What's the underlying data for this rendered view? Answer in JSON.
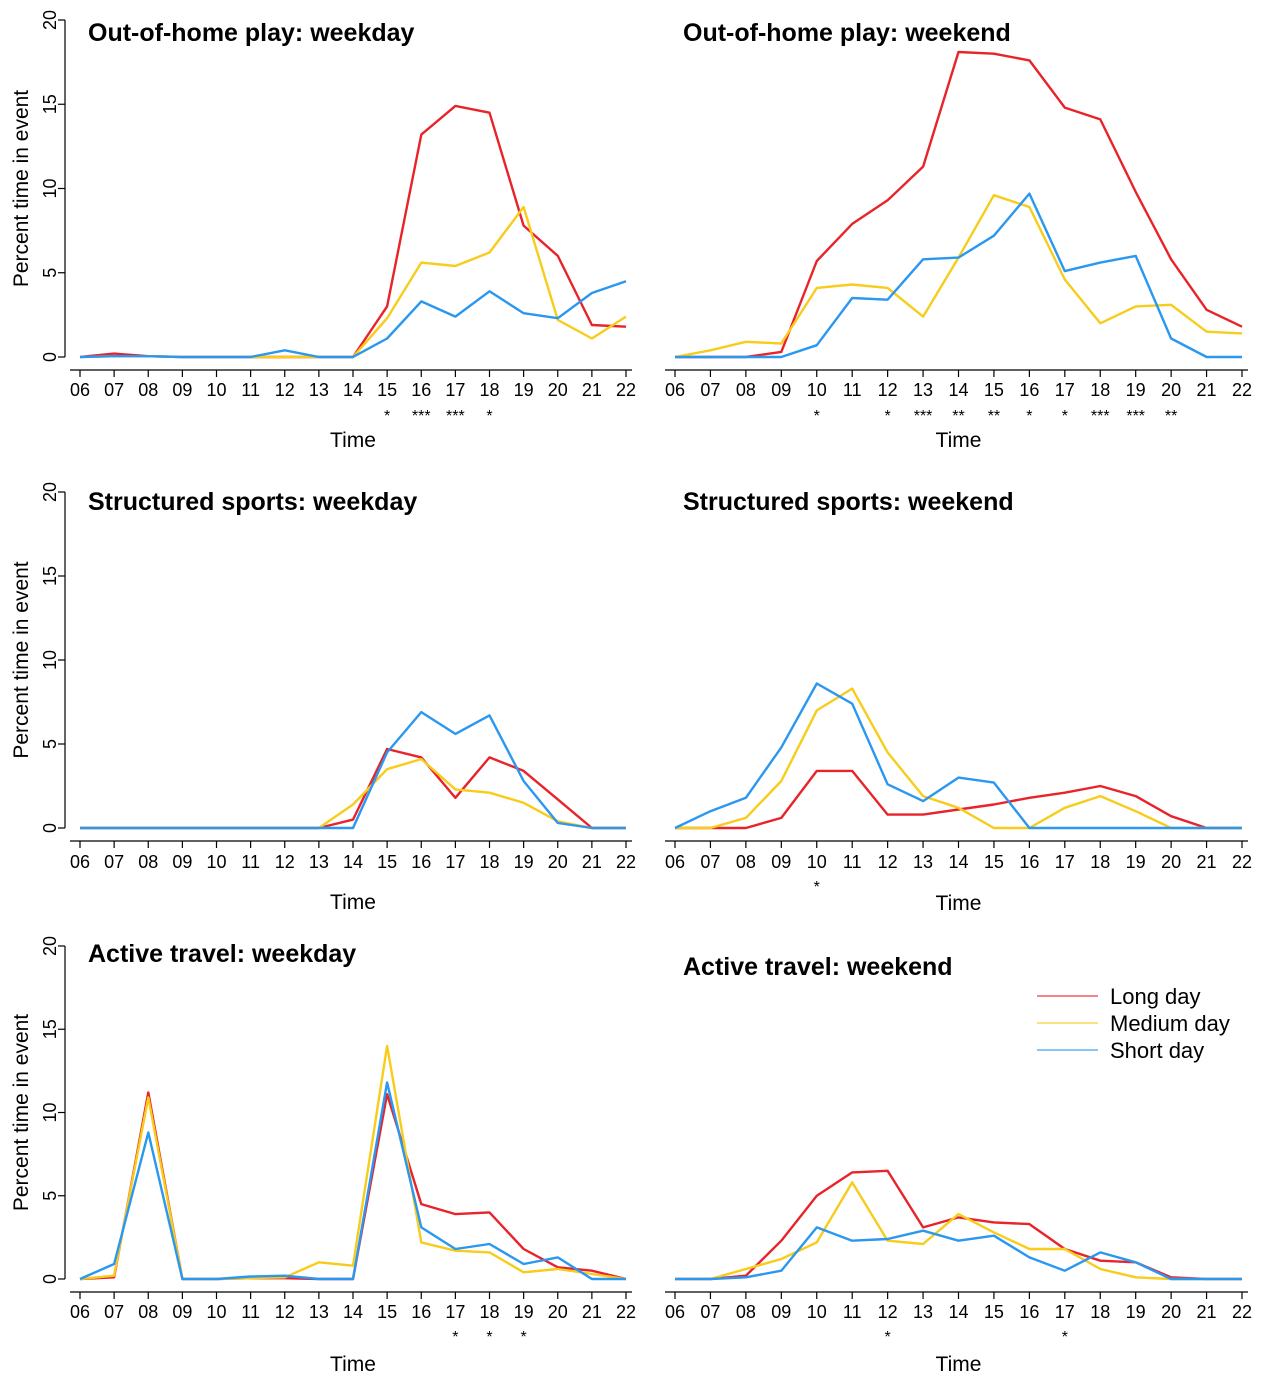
{
  "legend": [
    {
      "name": "Long day",
      "color": "#e8232a"
    },
    {
      "name": "Medium day",
      "color": "#f7cc1b"
    },
    {
      "name": "Short day",
      "color": "#2a97f0"
    }
  ],
  "chart_data": [
    {
      "type": "line",
      "title": "Out-of-home play: weekday",
      "xlabel": "Time",
      "ylabel": "Percent time in event",
      "ylim": [
        0,
        20
      ],
      "yticks": [
        0,
        5,
        10,
        15,
        20
      ],
      "categories": [
        "06",
        "07",
        "08",
        "09",
        "10",
        "11",
        "12",
        "13",
        "14",
        "15",
        "16",
        "17",
        "18",
        "19",
        "20",
        "21",
        "22"
      ],
      "significance": [
        "",
        "",
        "",
        "",
        "",
        "",
        "",
        "",
        "",
        "*",
        "***",
        "***",
        "*",
        "",
        "",
        "",
        ""
      ],
      "series": [
        {
          "name": "Long day",
          "color": "#e8232a",
          "values": [
            0,
            0.2,
            0.05,
            0,
            0,
            0,
            0,
            0,
            0,
            3.0,
            13.2,
            14.9,
            14.5,
            7.8,
            6.0,
            1.9,
            1.8
          ]
        },
        {
          "name": "Medium day",
          "color": "#f7cc1b",
          "values": [
            0,
            0.05,
            0.05,
            0,
            0,
            0,
            0,
            0,
            0,
            2.3,
            5.6,
            5.4,
            6.2,
            8.9,
            2.2,
            1.1,
            2.4
          ]
        },
        {
          "name": "Short day",
          "color": "#2a97f0",
          "values": [
            0,
            0.05,
            0.05,
            0,
            0,
            0,
            0.4,
            0,
            0,
            1.1,
            3.3,
            2.4,
            3.9,
            2.6,
            2.3,
            3.8,
            4.5
          ]
        }
      ]
    },
    {
      "type": "line",
      "title": "Out-of-home play: weekend",
      "xlabel": "Time",
      "ylabel": "",
      "ylim": [
        0,
        20
      ],
      "categories": [
        "06",
        "07",
        "08",
        "09",
        "10",
        "11",
        "12",
        "13",
        "14",
        "15",
        "16",
        "17",
        "18",
        "19",
        "20",
        "21",
        "22"
      ],
      "significance": [
        "",
        "",
        "",
        "",
        "*",
        "",
        "*",
        "***",
        "**",
        "**",
        "*",
        "*",
        "***",
        "***",
        "**",
        "",
        ""
      ],
      "series": [
        {
          "name": "Long day",
          "color": "#e8232a",
          "values": [
            0,
            0,
            0,
            0.3,
            5.7,
            7.9,
            9.3,
            11.3,
            18.1,
            18.0,
            17.6,
            14.8,
            14.1,
            9.8,
            5.8,
            2.8,
            1.8
          ]
        },
        {
          "name": "Medium day",
          "color": "#f7cc1b",
          "values": [
            0,
            0.4,
            0.9,
            0.8,
            4.1,
            4.3,
            4.1,
            2.4,
            5.9,
            9.6,
            8.9,
            4.6,
            2.0,
            3.0,
            3.1,
            1.5,
            1.4
          ]
        },
        {
          "name": "Short day",
          "color": "#2a97f0",
          "values": [
            0,
            0,
            0,
            0,
            0.7,
            3.5,
            3.4,
            5.8,
            5.9,
            7.2,
            9.7,
            5.1,
            5.6,
            6.0,
            1.1,
            0,
            0
          ]
        }
      ]
    },
    {
      "type": "line",
      "title": "Structured sports: weekday",
      "xlabel": "Time",
      "ylabel": "Percent time in event",
      "ylim": [
        0,
        20
      ],
      "yticks": [
        0,
        5,
        10,
        15,
        20
      ],
      "categories": [
        "06",
        "07",
        "08",
        "09",
        "10",
        "11",
        "12",
        "13",
        "14",
        "15",
        "16",
        "17",
        "18",
        "19",
        "20",
        "21",
        "22"
      ],
      "significance": [
        "",
        "",
        "",
        "",
        "",
        "",
        "",
        "",
        "",
        "",
        "",
        "",
        "",
        "",
        "",
        "",
        ""
      ],
      "series": [
        {
          "name": "Long day",
          "color": "#e8232a",
          "values": [
            0,
            0,
            0,
            0,
            0,
            0,
            0,
            0,
            0.5,
            4.7,
            4.2,
            1.8,
            4.2,
            3.4,
            1.7,
            0,
            0
          ]
        },
        {
          "name": "Medium day",
          "color": "#f7cc1b",
          "values": [
            0,
            0,
            0,
            0,
            0,
            0,
            0,
            0,
            1.4,
            3.5,
            4.1,
            2.3,
            2.1,
            1.5,
            0.4,
            0,
            0
          ]
        },
        {
          "name": "Short day",
          "color": "#2a97f0",
          "values": [
            0,
            0,
            0,
            0,
            0,
            0,
            0,
            0,
            0,
            4.5,
            6.9,
            5.6,
            6.7,
            2.8,
            0.3,
            0,
            0
          ]
        }
      ]
    },
    {
      "type": "line",
      "title": "Structured sports: weekend",
      "xlabel": "Time",
      "ylabel": "",
      "ylim": [
        0,
        20
      ],
      "categories": [
        "06",
        "07",
        "08",
        "09",
        "10",
        "11",
        "12",
        "13",
        "14",
        "15",
        "16",
        "17",
        "18",
        "19",
        "20",
        "21",
        "22"
      ],
      "significance": [
        "",
        "",
        "",
        "",
        "*",
        "",
        "",
        "",
        "",
        "",
        "",
        "",
        "",
        "",
        "",
        "",
        ""
      ],
      "series": [
        {
          "name": "Long day",
          "color": "#e8232a",
          "values": [
            0,
            0,
            0,
            0.6,
            3.4,
            3.4,
            0.8,
            0.8,
            1.1,
            1.4,
            1.8,
            2.1,
            2.5,
            1.9,
            0.7,
            0,
            0
          ]
        },
        {
          "name": "Medium day",
          "color": "#f7cc1b",
          "values": [
            0,
            0,
            0.6,
            2.8,
            7.0,
            8.3,
            4.5,
            1.9,
            1.2,
            0,
            0,
            1.2,
            1.9,
            1.0,
            0,
            0,
            0
          ]
        },
        {
          "name": "Short day",
          "color": "#2a97f0",
          "values": [
            0,
            1.0,
            1.8,
            4.8,
            8.6,
            7.4,
            2.6,
            1.6,
            3.0,
            2.7,
            0,
            0,
            0,
            0,
            0,
            0,
            0
          ]
        }
      ]
    },
    {
      "type": "line",
      "title": "Active travel: weekday",
      "xlabel": "Time",
      "ylabel": "Percent time in event",
      "ylim": [
        0,
        20
      ],
      "yticks": [
        0,
        5,
        10,
        15,
        20
      ],
      "categories": [
        "06",
        "07",
        "08",
        "09",
        "10",
        "11",
        "12",
        "13",
        "14",
        "15",
        "16",
        "17",
        "18",
        "19",
        "20",
        "21",
        "22"
      ],
      "significance": [
        "",
        "",
        "",
        "",
        "",
        "",
        "",
        "",
        "",
        "",
        "",
        "*",
        "*",
        "*",
        "",
        "",
        ""
      ],
      "series": [
        {
          "name": "Long day",
          "color": "#e8232a",
          "values": [
            0,
            0.1,
            11.2,
            0,
            0,
            0.05,
            0.05,
            0,
            0,
            11.1,
            4.5,
            3.9,
            4.0,
            1.8,
            0.7,
            0.5,
            0
          ]
        },
        {
          "name": "Medium day",
          "color": "#f7cc1b",
          "values": [
            0,
            0.2,
            10.9,
            0,
            0,
            0.05,
            0.1,
            1.0,
            0.8,
            14.0,
            2.2,
            1.7,
            1.6,
            0.4,
            0.6,
            0.3,
            0
          ]
        },
        {
          "name": "Short day",
          "color": "#2a97f0",
          "values": [
            0,
            0.9,
            8.8,
            0,
            0,
            0.15,
            0.2,
            0,
            0,
            11.8,
            3.1,
            1.8,
            2.1,
            0.9,
            1.3,
            0,
            0
          ]
        }
      ]
    },
    {
      "type": "line",
      "title": "Active travel: weekend",
      "xlabel": "Time",
      "ylabel": "",
      "ylim": [
        0,
        20
      ],
      "categories": [
        "06",
        "07",
        "08",
        "09",
        "10",
        "11",
        "12",
        "13",
        "14",
        "15",
        "16",
        "17",
        "18",
        "19",
        "20",
        "21",
        "22"
      ],
      "significance": [
        "",
        "",
        "",
        "",
        "",
        "",
        "*",
        "",
        "",
        "",
        "",
        "*",
        "",
        "",
        "",
        "",
        ""
      ],
      "series": [
        {
          "name": "Long day",
          "color": "#e8232a",
          "values": [
            0,
            0,
            0.2,
            2.3,
            5.0,
            6.4,
            6.5,
            3.1,
            3.7,
            3.4,
            3.3,
            1.8,
            1.1,
            1.0,
            0.1,
            0,
            0
          ]
        },
        {
          "name": "Medium day",
          "color": "#f7cc1b",
          "values": [
            0,
            0,
            0.6,
            1.2,
            2.2,
            5.8,
            2.3,
            2.1,
            3.9,
            2.8,
            1.8,
            1.8,
            0.6,
            0.1,
            0,
            0,
            0
          ]
        },
        {
          "name": "Short day",
          "color": "#2a97f0",
          "values": [
            0,
            0,
            0.1,
            0.5,
            3.1,
            2.3,
            2.4,
            2.9,
            2.3,
            2.6,
            1.3,
            0.5,
            1.6,
            1.0,
            0,
            0,
            0
          ]
        }
      ]
    }
  ]
}
